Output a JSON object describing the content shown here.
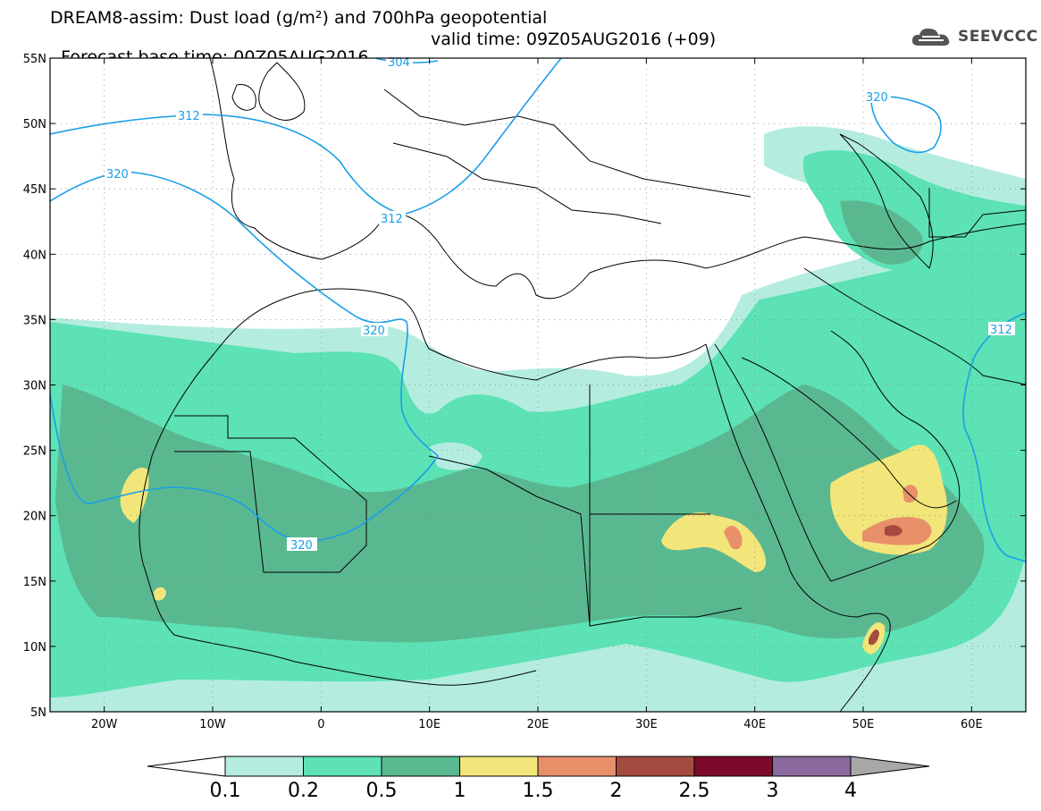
{
  "title": {
    "line1": "DREAM8-assim: Dust load (g/m²) and 700hPa geopotential",
    "line2_base": "Forecast base time: 00Z05AUG2016",
    "line2_valid": "valid time: 09Z05AUG2016 (+09)"
  },
  "logo": {
    "text": "SEEVCCC",
    "icon": "cloud-icon"
  },
  "map": {
    "lon_range": [
      -25,
      65
    ],
    "lat_range": [
      5,
      55
    ],
    "lon_ticks": [
      {
        "value": -20,
        "label": "20W"
      },
      {
        "value": -10,
        "label": "10W"
      },
      {
        "value": 0,
        "label": "0"
      },
      {
        "value": 10,
        "label": "10E"
      },
      {
        "value": 20,
        "label": "20E"
      },
      {
        "value": 30,
        "label": "30E"
      },
      {
        "value": 40,
        "label": "40E"
      },
      {
        "value": 50,
        "label": "50E"
      },
      {
        "value": 60,
        "label": "60E"
      }
    ],
    "lat_ticks": [
      {
        "value": 55,
        "label": "55N"
      },
      {
        "value": 50,
        "label": "50N"
      },
      {
        "value": 45,
        "label": "45N"
      },
      {
        "value": 40,
        "label": "40N"
      },
      {
        "value": 35,
        "label": "35N"
      },
      {
        "value": 30,
        "label": "30N"
      },
      {
        "value": 25,
        "label": "25N"
      },
      {
        "value": 20,
        "label": "20N"
      },
      {
        "value": 15,
        "label": "15N"
      },
      {
        "value": 10,
        "label": "10N"
      },
      {
        "value": 5,
        "label": "5N"
      }
    ],
    "contour_labels": [
      "304",
      "312",
      "320",
      "312",
      "320",
      "320",
      "320",
      "312"
    ]
  },
  "colorbar": {
    "labels": [
      "0.1",
      "0.2",
      "0.5",
      "1",
      "1.5",
      "2",
      "2.5",
      "3",
      "4"
    ],
    "colors": [
      "#b4ede0",
      "#5ce2b4",
      "#5ab890",
      "#f2e67a",
      "#e8906a",
      "#a54a3e",
      "#7c0a2a",
      "#8a6a9e"
    ],
    "under_color": "#ffffff",
    "over_color": "#a8a8a8"
  }
}
